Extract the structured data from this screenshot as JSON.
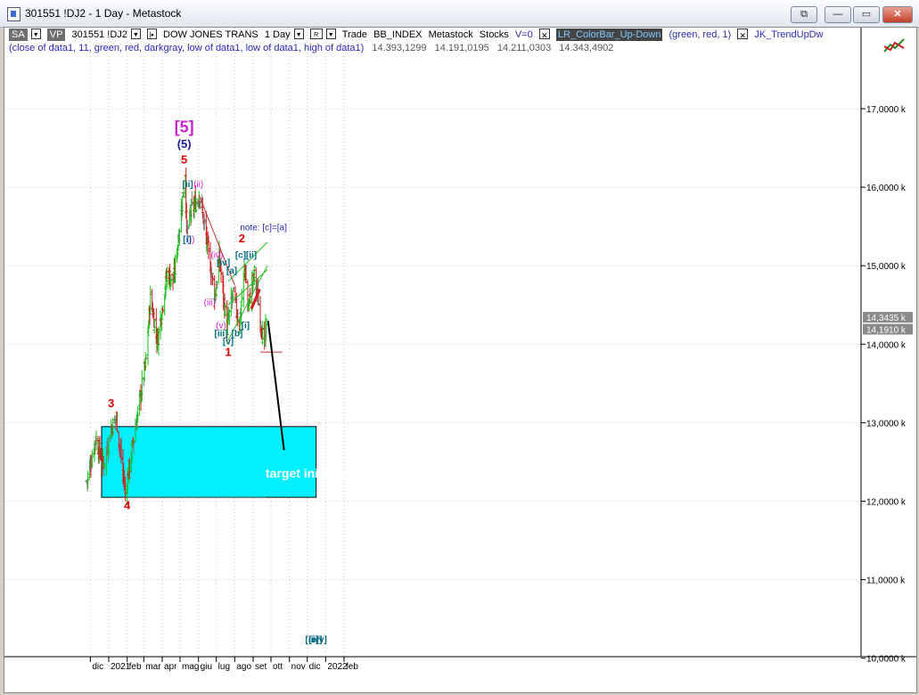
{
  "window": {
    "title": "301551 !DJ2 - 1 Day - Metastock",
    "buttons": {
      "restore_label": "⧉",
      "minimize_label": "—",
      "maximize_label": "▭",
      "close_label": "✕"
    }
  },
  "toolbar": {
    "sa_label": "SA",
    "vp_label": "VP",
    "symbol": "301551 !DJ2",
    "security_name": "DOW JONES TRANS",
    "period": "1 Day",
    "r_label": "R",
    "trade_label": "Trade",
    "indicator1": "BB_INDEX",
    "indicator2": "Metastock",
    "indicator3": "Stocks",
    "v_label": "V=0",
    "expert1": "LR_ColorBar_Up-Down",
    "expert1_params": "(green,  red,  1)",
    "expert2": "JK_TrendUpDw",
    "params_line": "(close of data1,  11,  green,  red,  darkgray,  low of data1,  low of data1,  high of data1)",
    "values": [
      "14.393,1299",
      "14.191,0195",
      "14.211,0303",
      "14.343,4902"
    ]
  },
  "colors": {
    "bull": "#16c016",
    "bear": "#d11a1a",
    "neutral": "#7a7a7a",
    "target_box": "#00f0ff",
    "channel": "#22bb22",
    "wave_red": "#dd0000",
    "wave_blue": "#1a1a9a",
    "wave_magenta": "#cc22cc",
    "wave_teal": "#006a80"
  },
  "chart_data": {
    "type": "bar",
    "title": "DOW JONES TRANS - 1 Day",
    "y_axis": {
      "min": 10000,
      "max": 18000,
      "ticks": [
        "17,0000 k",
        "16,0000 k",
        "15,0000 k",
        "14,0000 k",
        "13,0000 k",
        "12,0000 k",
        "11,0000 k",
        "10,0000 k"
      ],
      "tick_values": [
        17000,
        16000,
        15000,
        14000,
        13000,
        12000,
        11000,
        10000
      ]
    },
    "x_axis": {
      "labels": [
        "dic",
        "2021",
        "feb",
        "mar",
        "apr",
        "mag",
        "giu",
        "lug",
        "ago",
        "set",
        "ott",
        "nov",
        "dic",
        "2022",
        "feb"
      ]
    },
    "price_labels": [
      {
        "value": "14,3435 k",
        "y": 14343
      },
      {
        "value": "14,1910 k",
        "y": 14191
      }
    ],
    "price_path": [
      {
        "d": "2020-11-25",
        "close": 12250
      },
      {
        "d": "2020-12-10",
        "close": 12800
      },
      {
        "d": "2020-12-23",
        "close": 12450
      },
      {
        "d": "2021-01-06",
        "close": 12950
      },
      {
        "d": "2021-01-14",
        "close": 13050
      },
      {
        "d": "2021-01-29",
        "close": 12100
      },
      {
        "d": "2021-02-10",
        "close": 12700
      },
      {
        "d": "2021-03-05",
        "close": 13800
      },
      {
        "d": "2021-03-12",
        "close": 14600
      },
      {
        "d": "2021-03-24",
        "close": 14050
      },
      {
        "d": "2021-04-09",
        "close": 14900
      },
      {
        "d": "2021-04-20",
        "close": 14800
      },
      {
        "d": "2021-05-10",
        "close": 16200
      },
      {
        "d": "2021-05-12",
        "close": 15400
      },
      {
        "d": "2021-05-20",
        "close": 15700
      },
      {
        "d": "2021-06-03",
        "close": 15900
      },
      {
        "d": "2021-06-29",
        "close": 14600
      },
      {
        "d": "2021-07-06",
        "close": 15100
      },
      {
        "d": "2021-07-19",
        "close": 14200
      },
      {
        "d": "2021-07-29",
        "close": 14650
      },
      {
        "d": "2021-08-09",
        "close": 14250
      },
      {
        "d": "2021-08-18",
        "close": 15000
      },
      {
        "d": "2021-08-23",
        "close": 14450
      },
      {
        "d": "2021-09-03",
        "close": 14900
      },
      {
        "d": "2021-09-20",
        "close": 13950
      },
      {
        "d": "2021-09-24",
        "close": 14340
      }
    ],
    "annotations": {
      "red": [
        {
          "text": "3",
          "d": "2021-01-05",
          "y": 13200
        },
        {
          "text": "4",
          "d": "2021-02-01",
          "y": 11900
        },
        {
          "text": "5",
          "d": "2021-05-08",
          "y": 16300
        },
        {
          "text": "1",
          "d": "2021-07-21",
          "y": 13850
        },
        {
          "text": "2",
          "d": "2021-08-13",
          "y": 15300
        }
      ],
      "blue": [
        {
          "text": "(5)",
          "d": "2021-05-08",
          "y": 16500
        }
      ],
      "magenta": [
        {
          "text": "[5]",
          "d": "2021-05-08",
          "y": 16700
        },
        {
          "text": "(ii)",
          "d": "2021-06-01",
          "y": 16000
        },
        {
          "text": "(i)",
          "d": "2021-05-19",
          "y": 15300
        },
        {
          "text": "(iii)",
          "d": "2021-06-20",
          "y": 14500
        },
        {
          "text": "(iv)",
          "d": "2021-07-02",
          "y": 15100
        },
        {
          "text": "(v)",
          "d": "2021-07-09",
          "y": 14200
        }
      ],
      "teal": [
        {
          "text": "[ii]",
          "d": "2021-05-14",
          "y": 16000
        },
        {
          "text": "[i]",
          "d": "2021-05-13",
          "y": 15300
        },
        {
          "text": "[iv]",
          "d": "2021-07-13",
          "y": 15000
        },
        {
          "text": "[iii]",
          "d": "2021-07-09",
          "y": 14100
        },
        {
          "text": "[v]",
          "d": "2021-07-21",
          "y": 14000
        },
        {
          "text": "[a]",
          "d": "2021-07-27",
          "y": 14900
        },
        {
          "text": "[b]",
          "d": "2021-08-05",
          "y": 14100
        },
        {
          "text": "[c]",
          "d": "2021-08-11",
          "y": 15100
        },
        {
          "text": "[ii]",
          "d": "2021-08-29",
          "y": 15100
        },
        {
          "text": "[i]",
          "d": "2021-08-19",
          "y": 14200
        },
        {
          "text": "[iii]",
          "d": "2021-12-09",
          "y": 10200
        },
        {
          "text": "[iv]",
          "d": "2021-12-15",
          "y": 10200
        },
        {
          "text": "[v]",
          "d": "2021-12-25",
          "y": 10200
        }
      ]
    },
    "note": "note: [c]=[a]",
    "target_text": "target iniziale qua...",
    "target_zone": {
      "from": "2020-12-20",
      "to": "2021-12-16",
      "y_low": 12050,
      "y_high": 12950
    },
    "lines": {
      "trend_down": {
        "x1": "2021-06-02",
        "y1": 15900,
        "x2": "2021-08-01",
        "y2": 14750
      },
      "channel_lower": {
        "x1": "2021-07-21",
        "y1": 14050,
        "x2": "2021-09-25",
        "y2": 15000
      },
      "channel_mid": {
        "x1": "2021-07-21",
        "y1": 14500,
        "x2": "2021-09-25",
        "y2": 14950
      },
      "channel_upper": {
        "x1": "2021-07-21",
        "y1": 14800,
        "x2": "2021-09-25",
        "y2": 15300
      },
      "red_break": {
        "x1": "2021-08-29",
        "y1": 14450,
        "x2": "2021-09-12",
        "y2": 14700
      },
      "support_h": {
        "x1": "2021-09-13",
        "y1": 13900,
        "x2": "2021-10-20",
        "y2": 13900
      },
      "projection": {
        "x1": "2021-09-26",
        "y1": 14300,
        "x2": "2021-10-23",
        "y2": 12650
      },
      "target_inner": {
        "x1": "2021-02-01",
        "y1": 12050,
        "x2": "2021-09-22",
        "y2": 12050
      }
    }
  }
}
